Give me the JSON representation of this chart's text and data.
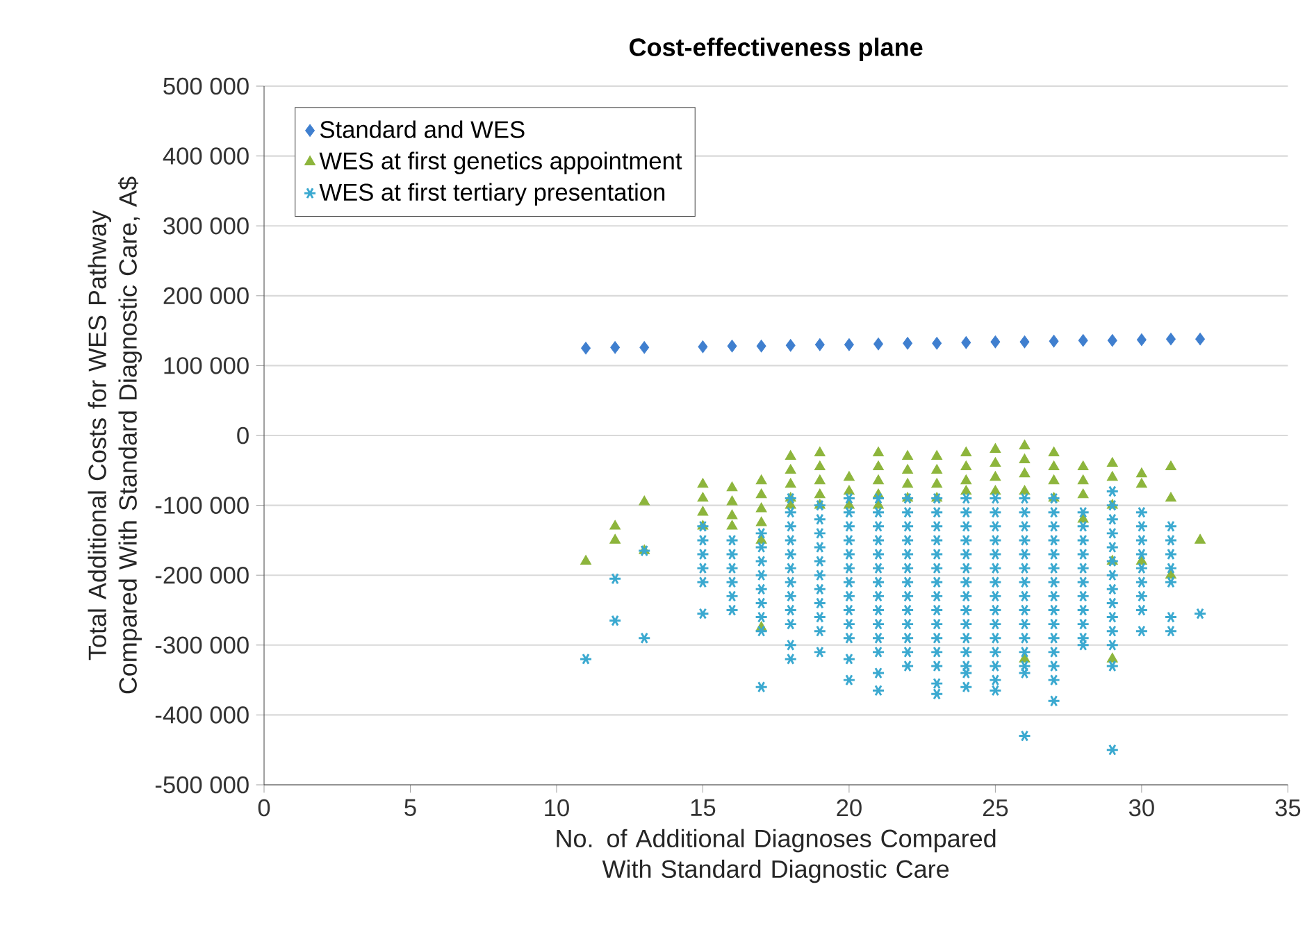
{
  "chart_data": {
    "type": "scatter",
    "title": "Cost-effectiveness plane",
    "xlabel": "No. of Additional Diagnoses Compared With Standard Diagnostic Care",
    "ylabel": "Total Additional Costs for WES Pathway Compared With Standard Diagnostic Care, A$",
    "xlim": [
      0,
      35
    ],
    "xticks": [
      0,
      5,
      10,
      15,
      20,
      25,
      30,
      35
    ],
    "ylim": [
      -500000,
      500000
    ],
    "yticks": [
      {
        "value": -500000,
        "label": "-500 000"
      },
      {
        "value": -400000,
        "label": "-400 000"
      },
      {
        "value": -300000,
        "label": "-300 000"
      },
      {
        "value": -200000,
        "label": "-200 000"
      },
      {
        "value": -100000,
        "label": "-100 000"
      },
      0,
      {
        "value": 100000,
        "label": "100 000"
      },
      {
        "value": 200000,
        "label": "200 000"
      },
      {
        "value": 300000,
        "label": "300 000"
      },
      {
        "value": 400000,
        "label": "400 000"
      },
      {
        "value": 500000,
        "label": "500 000"
      }
    ],
    "grid": "y",
    "legend": "top left",
    "series": [
      {
        "name": "Standard and WES",
        "color": "#3f7fcf",
        "marker": "diamond",
        "x": [
          11,
          12,
          13,
          15,
          16,
          17,
          18,
          19,
          20,
          21,
          22,
          23,
          24,
          25,
          26,
          27,
          28,
          29,
          30,
          31,
          32
        ],
        "values": [
          125000,
          126000,
          126000,
          127000,
          128000,
          128000,
          129000,
          130000,
          130000,
          131000,
          132000,
          132000,
          133000,
          134000,
          134000,
          135000,
          136000,
          136000,
          137000,
          138000,
          138000
        ]
      },
      {
        "name": "WES at first genetics appointment",
        "color": "#8db53c",
        "marker": "triangle",
        "x": [
          11,
          12,
          12,
          13,
          13,
          15,
          15,
          15,
          15,
          16,
          16,
          16,
          16,
          17,
          17,
          17,
          17,
          17,
          17,
          18,
          18,
          18,
          18,
          18,
          19,
          19,
          19,
          19,
          19,
          20,
          20,
          20,
          21,
          21,
          21,
          21,
          21,
          22,
          22,
          22,
          22,
          23,
          23,
          23,
          23,
          24,
          24,
          24,
          24,
          25,
          25,
          25,
          25,
          26,
          26,
          26,
          26,
          26,
          27,
          27,
          27,
          27,
          28,
          28,
          28,
          28,
          29,
          29,
          29,
          29,
          29,
          30,
          30,
          30,
          31,
          31,
          31,
          32
        ],
        "values": [
          -180000,
          -130000,
          -150000,
          -95000,
          -165000,
          -70000,
          -90000,
          -110000,
          -130000,
          -75000,
          -95000,
          -115000,
          -130000,
          -65000,
          -85000,
          -105000,
          -125000,
          -150000,
          -275000,
          -30000,
          -50000,
          -70000,
          -90000,
          -100000,
          -25000,
          -45000,
          -65000,
          -85000,
          -100000,
          -60000,
          -80000,
          -100000,
          -25000,
          -45000,
          -65000,
          -85000,
          -100000,
          -30000,
          -50000,
          -70000,
          -90000,
          -30000,
          -50000,
          -70000,
          -90000,
          -25000,
          -45000,
          -65000,
          -80000,
          -20000,
          -40000,
          -60000,
          -80000,
          -15000,
          -35000,
          -55000,
          -80000,
          -320000,
          -25000,
          -45000,
          -65000,
          -90000,
          -45000,
          -65000,
          -85000,
          -120000,
          -40000,
          -60000,
          -100000,
          -180000,
          -320000,
          -55000,
          -70000,
          -180000,
          -45000,
          -90000,
          -200000,
          -150000
        ]
      },
      {
        "name": "WES at first tertiary presentation",
        "color": "#3ba9d0",
        "marker": "cross",
        "x": [
          11,
          12,
          12,
          13,
          13,
          15,
          15,
          15,
          15,
          15,
          15,
          16,
          16,
          16,
          16,
          16,
          16,
          17,
          17,
          17,
          17,
          17,
          17,
          17,
          17,
          17,
          18,
          18,
          18,
          18,
          18,
          18,
          18,
          18,
          18,
          18,
          18,
          18,
          19,
          19,
          19,
          19,
          19,
          19,
          19,
          19,
          19,
          19,
          19,
          20,
          20,
          20,
          20,
          20,
          20,
          20,
          20,
          20,
          20,
          20,
          20,
          20,
          21,
          21,
          21,
          21,
          21,
          21,
          21,
          21,
          21,
          21,
          21,
          21,
          21,
          21,
          22,
          22,
          22,
          22,
          22,
          22,
          22,
          22,
          22,
          22,
          22,
          22,
          22,
          23,
          23,
          23,
          23,
          23,
          23,
          23,
          23,
          23,
          23,
          23,
          23,
          23,
          23,
          23,
          24,
          24,
          24,
          24,
          24,
          24,
          24,
          24,
          24,
          24,
          24,
          24,
          24,
          24,
          24,
          25,
          25,
          25,
          25,
          25,
          25,
          25,
          25,
          25,
          25,
          25,
          25,
          25,
          25,
          25,
          26,
          26,
          26,
          26,
          26,
          26,
          26,
          26,
          26,
          26,
          26,
          26,
          26,
          26,
          26,
          27,
          27,
          27,
          27,
          27,
          27,
          27,
          27,
          27,
          27,
          27,
          27,
          27,
          27,
          27,
          28,
          28,
          28,
          28,
          28,
          28,
          28,
          28,
          28,
          28,
          28,
          29,
          29,
          29,
          29,
          29,
          29,
          29,
          29,
          29,
          29,
          29,
          29,
          29,
          29,
          30,
          30,
          30,
          30,
          30,
          30,
          30,
          30,
          30,
          31,
          31,
          31,
          31,
          31,
          31,
          31,
          32
        ],
        "values": [
          -320000,
          -205000,
          -265000,
          -165000,
          -290000,
          -130000,
          -150000,
          -170000,
          -190000,
          -210000,
          -255000,
          -150000,
          -170000,
          -190000,
          -210000,
          -230000,
          -250000,
          -140000,
          -160000,
          -180000,
          -200000,
          -220000,
          -240000,
          -260000,
          -280000,
          -360000,
          -90000,
          -110000,
          -130000,
          -150000,
          -170000,
          -190000,
          -210000,
          -230000,
          -250000,
          -270000,
          -300000,
          -320000,
          -100000,
          -120000,
          -140000,
          -160000,
          -180000,
          -200000,
          -220000,
          -240000,
          -260000,
          -280000,
          -310000,
          -90000,
          -110000,
          -130000,
          -150000,
          -170000,
          -190000,
          -210000,
          -230000,
          -250000,
          -270000,
          -290000,
          -320000,
          -350000,
          -90000,
          -110000,
          -130000,
          -150000,
          -170000,
          -190000,
          -210000,
          -230000,
          -250000,
          -270000,
          -290000,
          -310000,
          -340000,
          -365000,
          -90000,
          -110000,
          -130000,
          -150000,
          -170000,
          -190000,
          -210000,
          -230000,
          -250000,
          -270000,
          -290000,
          -310000,
          -330000,
          -90000,
          -110000,
          -130000,
          -150000,
          -170000,
          -190000,
          -210000,
          -230000,
          -250000,
          -270000,
          -290000,
          -310000,
          -330000,
          -355000,
          -370000,
          -90000,
          -110000,
          -130000,
          -150000,
          -170000,
          -190000,
          -210000,
          -230000,
          -250000,
          -270000,
          -290000,
          -310000,
          -330000,
          -340000,
          -360000,
          -90000,
          -110000,
          -130000,
          -150000,
          -170000,
          -190000,
          -210000,
          -230000,
          -250000,
          -270000,
          -290000,
          -310000,
          -330000,
          -350000,
          -365000,
          -90000,
          -110000,
          -130000,
          -150000,
          -170000,
          -190000,
          -210000,
          -230000,
          -250000,
          -270000,
          -290000,
          -310000,
          -330000,
          -340000,
          -430000,
          -90000,
          -110000,
          -130000,
          -150000,
          -170000,
          -190000,
          -210000,
          -230000,
          -250000,
          -270000,
          -290000,
          -310000,
          -330000,
          -350000,
          -380000,
          -110000,
          -130000,
          -150000,
          -170000,
          -190000,
          -210000,
          -230000,
          -250000,
          -270000,
          -290000,
          -300000,
          -80000,
          -100000,
          -120000,
          -140000,
          -160000,
          -180000,
          -200000,
          -220000,
          -240000,
          -260000,
          -280000,
          -300000,
          -330000,
          -450000,
          -110000,
          -130000,
          -150000,
          -170000,
          -190000,
          -210000,
          -230000,
          -250000,
          -280000,
          -130000,
          -150000,
          -170000,
          -190000,
          -210000,
          -260000,
          -280000,
          -255000
        ]
      }
    ]
  }
}
